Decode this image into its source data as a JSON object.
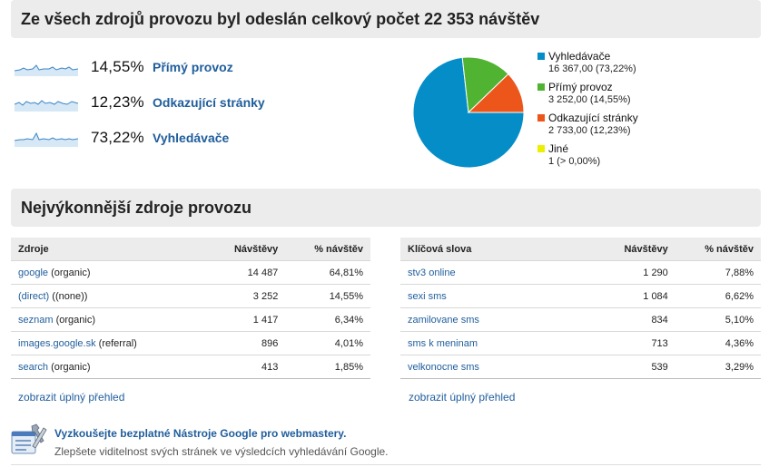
{
  "summary": {
    "title": "Ze všech zdrojů provozu byl odeslán celkový počet 22 353 návštěv",
    "rows": [
      {
        "percent": "14,55%",
        "label": "Přímý provoz"
      },
      {
        "percent": "12,23%",
        "label": "Odkazující stránky"
      },
      {
        "percent": "73,22%",
        "label": "Vyhledávače"
      }
    ]
  },
  "chart_data": {
    "type": "pie",
    "categories": [
      "Vyhledávače",
      "Přímý provoz",
      "Odkazující stránky",
      "Jiné"
    ],
    "values": [
      16367,
      3252,
      2733,
      1
    ],
    "colors": [
      "#058dc7",
      "#50b432",
      "#ed561b",
      "#edef00"
    ],
    "legend_position": "right",
    "legend_values": [
      "16 367,00 (73,22%)",
      "3 252,00 (14,55%)",
      "2 733,00 (12,23%)",
      "1 (> 0,00%)"
    ]
  },
  "top_sources": {
    "title": "Nejvýkonnější zdroje provozu",
    "sources_table": {
      "headers": [
        "Zdroje",
        "Návštěvy",
        "% návštěv"
      ],
      "rows": [
        {
          "name": "google",
          "suffix": " (organic)",
          "visits": "14 487",
          "pct": "64,81%"
        },
        {
          "name": "(direct)",
          "suffix": " ((none))",
          "visits": "3 252",
          "pct": "14,55%"
        },
        {
          "name": "seznam",
          "suffix": " (organic)",
          "visits": "1 417",
          "pct": "6,34%"
        },
        {
          "name": "images.google.sk",
          "suffix": " (referral)",
          "visits": "896",
          "pct": "4,01%"
        },
        {
          "name": "search",
          "suffix": " (organic)",
          "visits": "413",
          "pct": "1,85%"
        }
      ],
      "full_report": "zobrazit úplný přehled"
    },
    "keywords_table": {
      "headers": [
        "Klíčová slova",
        "Návštěvy",
        "% návštěv"
      ],
      "rows": [
        {
          "name": "stv3 online",
          "visits": "1 290",
          "pct": "7,88%"
        },
        {
          "name": "sexi sms",
          "visits": "1 084",
          "pct": "6,62%"
        },
        {
          "name": "zamilovane sms",
          "visits": "834",
          "pct": "5,10%"
        },
        {
          "name": "sms k meninam",
          "visits": "713",
          "pct": "4,36%"
        },
        {
          "name": "velkonocne sms",
          "visits": "539",
          "pct": "3,29%"
        }
      ],
      "full_report": "zobrazit úplný přehled"
    }
  },
  "promo": {
    "title": "Vyzkoušejte bezplatné Nástroje Google pro webmastery.",
    "text": "Zlepšete viditelnost svých stránek ve výsledcích vyhledávání Google.",
    "icon": "webmaster-tools-icon"
  }
}
